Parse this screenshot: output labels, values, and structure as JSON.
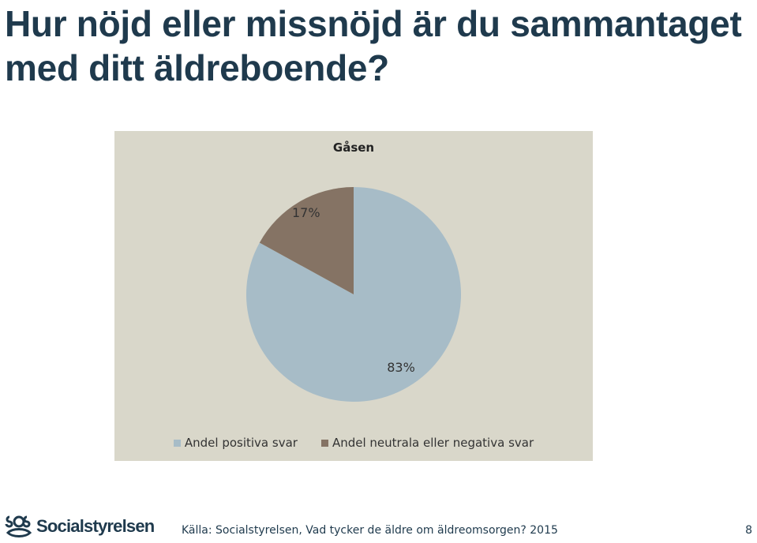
{
  "slide": {
    "title": "Hur nöjd eller missnöjd är du sammantaget med ditt äldreboende?",
    "source": "Källa: Socialstyrelsen, Vad tycker de äldre om äldreomsorgen? 2015",
    "page_number": "8",
    "logo_text": "Socialstyrelsen"
  },
  "colors": {
    "panel_bg": "#d9d7ca",
    "title": "#1f3a4d"
  },
  "chart_data": {
    "type": "pie",
    "title": "Gåsen",
    "categories": [
      "Andel positiva svar",
      "Andel neutrala eller negativa svar"
    ],
    "values": [
      83,
      17
    ],
    "labels": [
      "83%",
      "17%"
    ],
    "colors": [
      "#a7bcc7",
      "#857364"
    ],
    "legend_position": "bottom"
  }
}
